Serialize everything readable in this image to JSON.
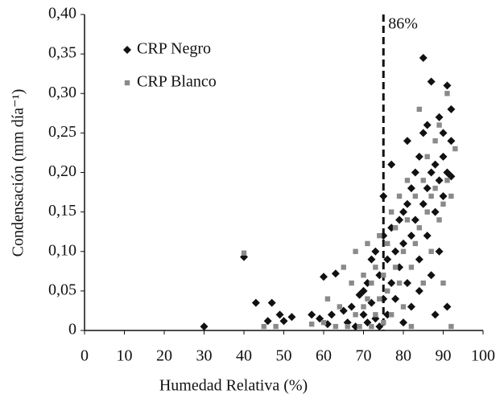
{
  "chart_data": {
    "type": "scatter",
    "xlabel": "Humedad Relativa (%)",
    "ylabel": "Condensación (mm día⁻¹)",
    "xlim": [
      0,
      100
    ],
    "xticks": [
      0,
      10,
      20,
      30,
      40,
      50,
      60,
      70,
      80,
      90,
      100
    ],
    "ylim": [
      0,
      0.4
    ],
    "yticks": [
      0,
      {
        "value": 0.05,
        "label": "0,05"
      },
      {
        "value": 0.1,
        "label": "0,10"
      },
      {
        "value": 0.15,
        "label": "0,15"
      },
      {
        "value": 0.2,
        "label": "0,20"
      },
      {
        "value": 0.25,
        "label": "0,25"
      },
      {
        "value": 0.3,
        "label": "0,30"
      },
      {
        "value": 0.35,
        "label": "0,35"
      },
      {
        "value": 0.4,
        "label": "0,40"
      }
    ],
    "vline": {
      "x": 75,
      "label": "86%"
    },
    "legend": "upper left",
    "series": [
      {
        "name": "CRP Negro",
        "color": "#111111",
        "marker": "diamond",
        "x": [
          30,
          40,
          43,
          46,
          47,
          49,
          50,
          52,
          57,
          59,
          60,
          61,
          62,
          63,
          65,
          66,
          67,
          68,
          69,
          70,
          70,
          71,
          71,
          72,
          72,
          73,
          73,
          74,
          74,
          75,
          75,
          75,
          76,
          76,
          77,
          77,
          77,
          78,
          78,
          79,
          79,
          80,
          80,
          80,
          81,
          81,
          81,
          82,
          82,
          82,
          83,
          83,
          84,
          84,
          84,
          85,
          85,
          85,
          86,
          86,
          86,
          87,
          87,
          87,
          88,
          88,
          88,
          89,
          89,
          89,
          90,
          90,
          90,
          91,
          91,
          92,
          92,
          92,
          91
        ],
        "values": [
          0.005,
          0.093,
          0.035,
          0.012,
          0.035,
          0.02,
          0.012,
          0.017,
          0.02,
          0.015,
          0.068,
          0.008,
          0.02,
          0.072,
          0.025,
          0.01,
          0.03,
          0.005,
          0.045,
          0.02,
          0.05,
          0.06,
          0.01,
          0.09,
          0.035,
          0.015,
          0.1,
          0.07,
          0.005,
          0.04,
          0.17,
          0.12,
          0.09,
          0.02,
          0.13,
          0.06,
          0.21,
          0.1,
          0.04,
          0.14,
          0.08,
          0.15,
          0.01,
          0.11,
          0.24,
          0.16,
          0.06,
          0.12,
          0.18,
          0.03,
          0.2,
          0.14,
          0.22,
          0.09,
          0.05,
          0.345,
          0.25,
          0.16,
          0.18,
          0.26,
          0.12,
          0.2,
          0.07,
          0.315,
          0.21,
          0.15,
          0.02,
          0.27,
          0.19,
          0.1,
          0.22,
          0.25,
          0.17,
          0.31,
          0.2,
          0.28,
          0.24,
          0.195,
          0.03
        ]
      },
      {
        "name": "CRP Blanco",
        "color": "#8a8a8a",
        "marker": "square",
        "x": [
          40,
          45,
          48,
          57,
          60,
          61,
          63,
          64,
          65,
          66,
          67,
          68,
          68,
          69,
          70,
          70,
          71,
          71,
          72,
          72,
          73,
          73,
          74,
          74,
          75,
          75,
          76,
          76,
          77,
          77,
          78,
          78,
          79,
          79,
          80,
          80,
          81,
          81,
          82,
          82,
          83,
          83,
          84,
          84,
          85,
          85,
          86,
          86,
          87,
          87,
          88,
          88,
          89,
          89,
          90,
          90,
          91,
          91,
          92,
          92,
          93
        ],
        "values": [
          0.098,
          0.005,
          0.005,
          0.008,
          0.01,
          0.04,
          0.005,
          0.03,
          0.08,
          0.005,
          0.06,
          0.02,
          0.1,
          0.005,
          0.07,
          0.03,
          0.11,
          0.04,
          0.005,
          0.06,
          0.02,
          0.08,
          0.12,
          0.04,
          0.01,
          0.07,
          0.11,
          0.05,
          0.15,
          0.02,
          0.08,
          0.13,
          0.06,
          0.17,
          0.1,
          0.03,
          0.14,
          0.19,
          0.08,
          0.005,
          0.17,
          0.11,
          0.28,
          0.13,
          0.19,
          0.06,
          0.15,
          0.22,
          0.17,
          0.1,
          0.18,
          0.24,
          0.26,
          0.14,
          0.16,
          0.06,
          0.19,
          0.3,
          0.17,
          0.005,
          0.23
        ]
      }
    ]
  }
}
